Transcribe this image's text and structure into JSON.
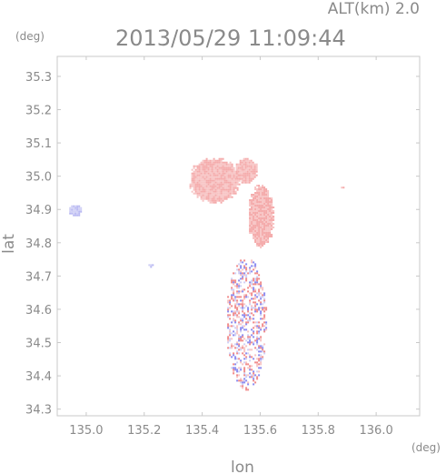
{
  "header": {
    "altitude_label": "ALT(km) 2.0",
    "timestamp": "2013/05/29 11:09:44"
  },
  "map": {
    "y_unit": "(deg)",
    "x_unit": "(deg)",
    "y_axis_label": "lat",
    "x_axis_label": "lon",
    "x_ticks": [
      "135.0",
      "135.2",
      "135.4",
      "135.6",
      "135.8",
      "136.0"
    ],
    "y_ticks": [
      "35.3",
      "35.2",
      "35.1",
      "35.0",
      "34.9",
      "34.8",
      "34.7",
      "34.6",
      "34.5",
      "34.4",
      "34.3"
    ],
    "x_range": [
      134.9,
      136.15
    ],
    "y_range": [
      34.28,
      35.36
    ],
    "colors": {
      "frame": "#c8c8c8",
      "text": "#8a8a8a",
      "positive": "#f08a8a",
      "positive_light": "#f7c4c4",
      "negative": "#8a8af0",
      "negative_light": "#cfcff5"
    },
    "echo_regions": [
      {
        "sign": "positive",
        "lon": 135.44,
        "lat": 34.99,
        "rlon": 0.09,
        "rlat": 0.07
      },
      {
        "sign": "positive",
        "lon": 135.6,
        "lat": 34.88,
        "rlon": 0.045,
        "rlat": 0.1
      },
      {
        "sign": "positive",
        "lon": 135.55,
        "lat": 35.02,
        "rlon": 0.04,
        "rlat": 0.04
      },
      {
        "sign": "negative",
        "lon": 134.96,
        "lat": 34.9,
        "rlon": 0.025,
        "rlat": 0.018
      },
      {
        "sign": "negative",
        "lon": 135.22,
        "lat": 34.735,
        "rlon": 0.012,
        "rlat": 0.006
      },
      {
        "sign": "positive",
        "lon": 135.88,
        "lat": 34.97,
        "rlon": 0.008,
        "rlat": 0.004
      },
      {
        "sign": "mixed",
        "lon": 135.55,
        "lat": 34.56,
        "rlon": 0.07,
        "rlat": 0.2
      }
    ]
  }
}
